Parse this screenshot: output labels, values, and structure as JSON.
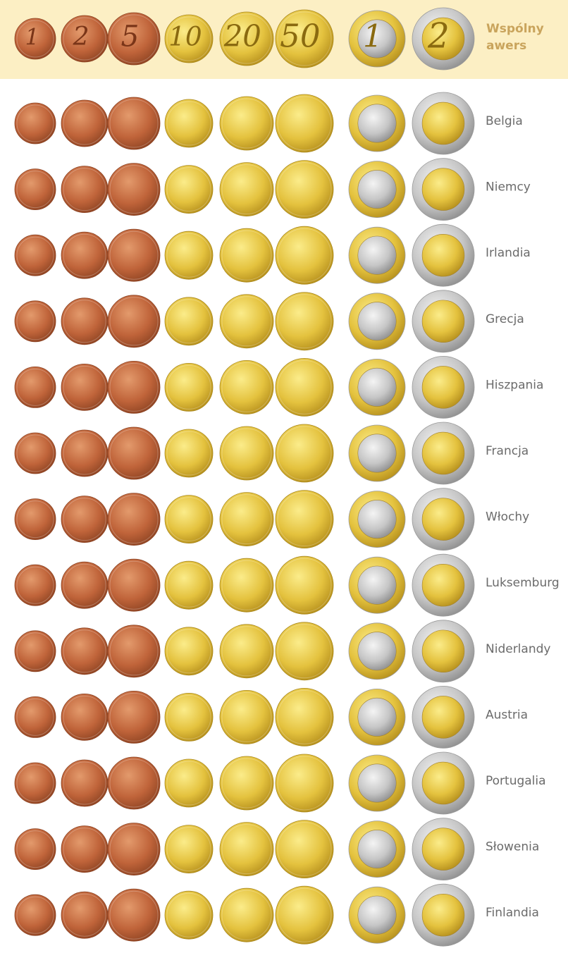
{
  "header": {
    "label": "Wspólny awers",
    "coins": [
      "1",
      "2",
      "5",
      "10",
      "20",
      "50",
      "1",
      "2"
    ]
  },
  "rows": [
    "Belgia",
    "Niemcy",
    "Irlandia",
    "Grecja",
    "Hiszpania",
    "Francja",
    "Włochy",
    "Luksemburg",
    "Niderlandy",
    "Austria",
    "Portugalia",
    "Słowenia",
    "Finlandia"
  ]
}
